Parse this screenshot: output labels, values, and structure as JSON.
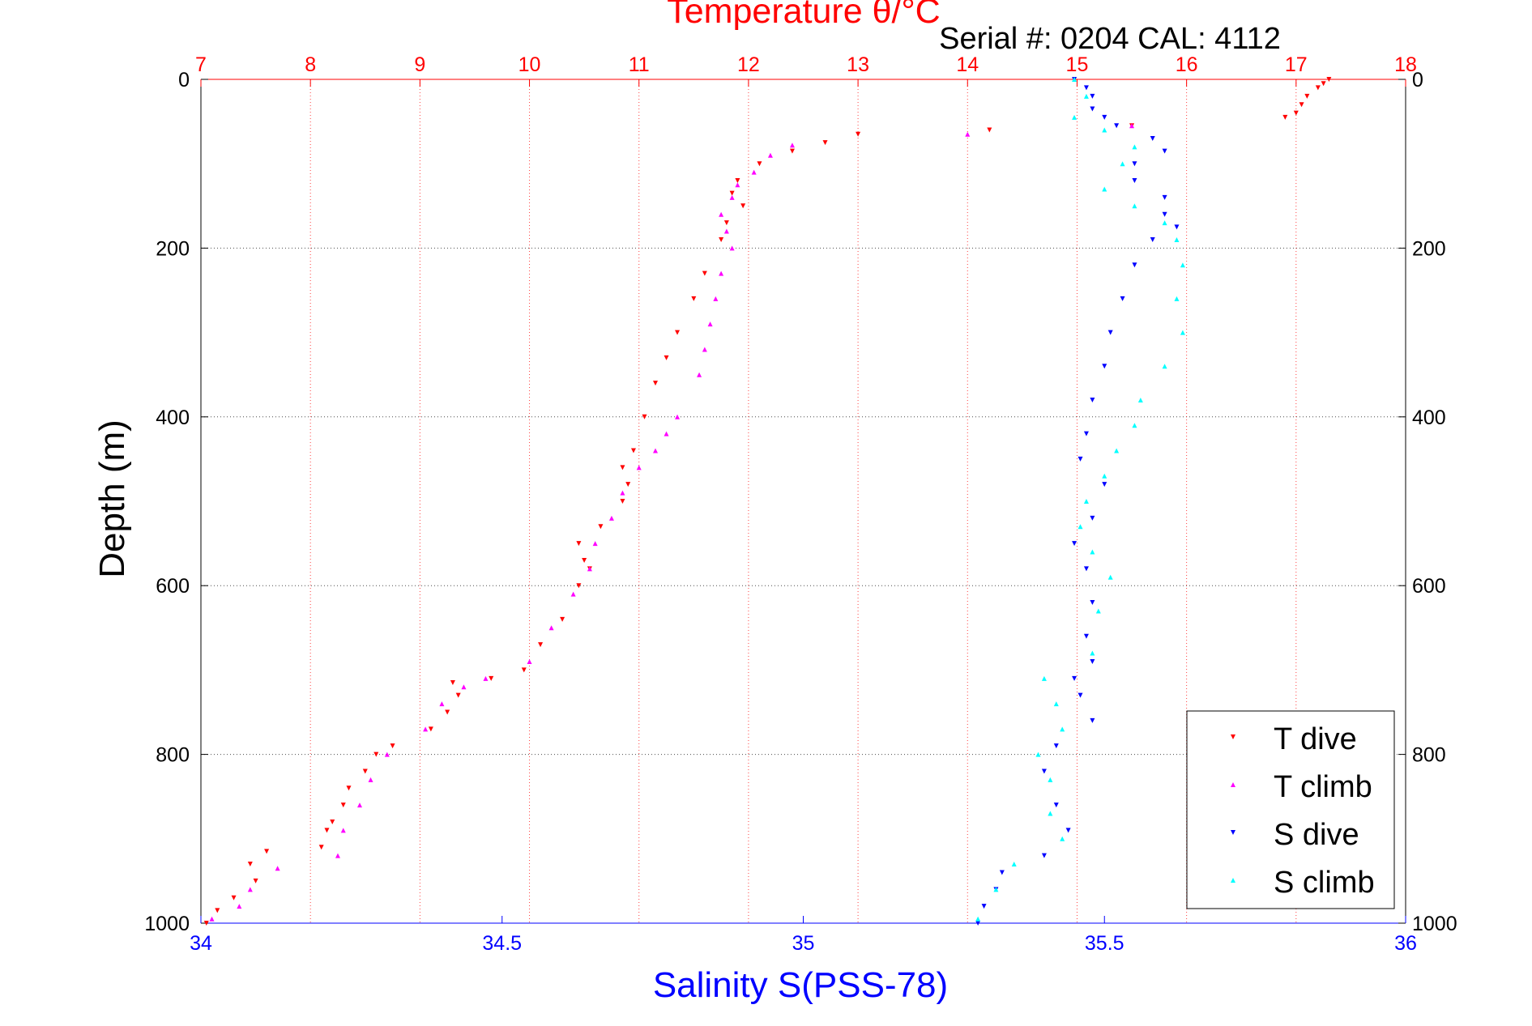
{
  "chart_data": {
    "type": "scatter",
    "title": "Temperature θ/°C",
    "subtitle": "Serial #: 0204  CAL: 4112",
    "ylabel": "Depth (m)",
    "xlabel": "Salinity S(PSS-78)",
    "ylim": [
      0,
      1000
    ],
    "y_reversed": true,
    "yticks": [
      "0",
      "200",
      "400",
      "600",
      "800",
      "1000"
    ],
    "x_bottom": {
      "label": "Salinity S(PSS-78)",
      "lim": [
        34,
        36
      ],
      "ticks": [
        "34",
        "34.5",
        "35",
        "35.5",
        "36"
      ],
      "color": "#0000ff"
    },
    "x_top": {
      "label": "Temperature θ/°C",
      "lim": [
        7,
        18
      ],
      "ticks": [
        "7",
        "8",
        "9",
        "10",
        "11",
        "12",
        "13",
        "14",
        "15",
        "16",
        "17",
        "18"
      ],
      "color": "#ff0000"
    },
    "grid": true,
    "legend_position": "bottom-right",
    "series": [
      {
        "name": "T dive",
        "axis": "top",
        "color": "#ff0000",
        "marker": "triangle-down",
        "points": [
          [
            17.3,
            0
          ],
          [
            17.25,
            5
          ],
          [
            17.2,
            10
          ],
          [
            17.1,
            20
          ],
          [
            17.05,
            30
          ],
          [
            17.0,
            40
          ],
          [
            16.9,
            45
          ],
          [
            15.5,
            55
          ],
          [
            14.2,
            60
          ],
          [
            13.0,
            65
          ],
          [
            12.7,
            75
          ],
          [
            12.4,
            85
          ],
          [
            12.1,
            100
          ],
          [
            11.9,
            120
          ],
          [
            11.85,
            135
          ],
          [
            11.95,
            150
          ],
          [
            11.8,
            170
          ],
          [
            11.75,
            190
          ],
          [
            11.6,
            230
          ],
          [
            11.5,
            260
          ],
          [
            11.35,
            300
          ],
          [
            11.25,
            330
          ],
          [
            11.15,
            360
          ],
          [
            11.05,
            400
          ],
          [
            10.95,
            440
          ],
          [
            10.85,
            460
          ],
          [
            10.9,
            480
          ],
          [
            10.85,
            500
          ],
          [
            10.65,
            530
          ],
          [
            10.45,
            550
          ],
          [
            10.5,
            570
          ],
          [
            10.55,
            580
          ],
          [
            10.45,
            600
          ],
          [
            10.3,
            640
          ],
          [
            10.1,
            670
          ],
          [
            9.95,
            700
          ],
          [
            9.65,
            710
          ],
          [
            9.3,
            715
          ],
          [
            9.35,
            730
          ],
          [
            9.25,
            750
          ],
          [
            9.1,
            770
          ],
          [
            8.75,
            790
          ],
          [
            8.6,
            800
          ],
          [
            8.5,
            820
          ],
          [
            8.35,
            840
          ],
          [
            8.3,
            860
          ],
          [
            8.2,
            880
          ],
          [
            8.15,
            890
          ],
          [
            8.1,
            910
          ],
          [
            7.6,
            915
          ],
          [
            7.45,
            930
          ],
          [
            7.5,
            950
          ],
          [
            7.3,
            970
          ],
          [
            7.15,
            985
          ],
          [
            7.05,
            1000
          ]
        ]
      },
      {
        "name": "T climb",
        "axis": "top",
        "color": "#ff00ff",
        "marker": "triangle-up",
        "points": [
          [
            15.5,
            55
          ],
          [
            14.0,
            65
          ],
          [
            12.4,
            78
          ],
          [
            12.2,
            90
          ],
          [
            12.05,
            110
          ],
          [
            11.9,
            125
          ],
          [
            11.85,
            140
          ],
          [
            11.75,
            160
          ],
          [
            11.8,
            180
          ],
          [
            11.85,
            200
          ],
          [
            11.75,
            230
          ],
          [
            11.7,
            260
          ],
          [
            11.65,
            290
          ],
          [
            11.6,
            320
          ],
          [
            11.55,
            350
          ],
          [
            11.35,
            400
          ],
          [
            11.25,
            420
          ],
          [
            11.15,
            440
          ],
          [
            11.0,
            460
          ],
          [
            10.85,
            490
          ],
          [
            10.75,
            520
          ],
          [
            10.6,
            550
          ],
          [
            10.55,
            580
          ],
          [
            10.4,
            610
          ],
          [
            10.2,
            650
          ],
          [
            10.0,
            690
          ],
          [
            9.6,
            710
          ],
          [
            9.4,
            720
          ],
          [
            9.2,
            740
          ],
          [
            9.05,
            770
          ],
          [
            8.7,
            800
          ],
          [
            8.55,
            830
          ],
          [
            8.45,
            860
          ],
          [
            8.3,
            890
          ],
          [
            8.25,
            920
          ],
          [
            7.7,
            935
          ],
          [
            7.45,
            960
          ],
          [
            7.35,
            980
          ],
          [
            7.1,
            995
          ]
        ]
      },
      {
        "name": "S dive",
        "axis": "bottom",
        "color": "#0000ff",
        "marker": "triangle-down",
        "points": [
          [
            35.45,
            0
          ],
          [
            35.47,
            10
          ],
          [
            35.48,
            20
          ],
          [
            35.48,
            35
          ],
          [
            35.5,
            45
          ],
          [
            35.52,
            55
          ],
          [
            35.58,
            70
          ],
          [
            35.6,
            85
          ],
          [
            35.55,
            100
          ],
          [
            35.55,
            120
          ],
          [
            35.6,
            140
          ],
          [
            35.6,
            160
          ],
          [
            35.62,
            175
          ],
          [
            35.58,
            190
          ],
          [
            35.55,
            220
          ],
          [
            35.53,
            260
          ],
          [
            35.51,
            300
          ],
          [
            35.5,
            340
          ],
          [
            35.48,
            380
          ],
          [
            35.47,
            420
          ],
          [
            35.46,
            450
          ],
          [
            35.5,
            480
          ],
          [
            35.48,
            520
          ],
          [
            35.45,
            550
          ],
          [
            35.47,
            580
          ],
          [
            35.48,
            620
          ],
          [
            35.47,
            660
          ],
          [
            35.48,
            690
          ],
          [
            35.45,
            710
          ],
          [
            35.46,
            730
          ],
          [
            35.48,
            760
          ],
          [
            35.42,
            790
          ],
          [
            35.4,
            820
          ],
          [
            35.42,
            860
          ],
          [
            35.44,
            890
          ],
          [
            35.4,
            920
          ],
          [
            35.33,
            940
          ],
          [
            35.32,
            960
          ],
          [
            35.3,
            980
          ],
          [
            35.29,
            1000
          ]
        ]
      },
      {
        "name": "S climb",
        "axis": "bottom",
        "color": "#00ffff",
        "marker": "triangle-up",
        "points": [
          [
            35.45,
            0
          ],
          [
            35.47,
            20
          ],
          [
            35.45,
            45
          ],
          [
            35.5,
            60
          ],
          [
            35.55,
            80
          ],
          [
            35.53,
            100
          ],
          [
            35.5,
            130
          ],
          [
            35.55,
            150
          ],
          [
            35.6,
            170
          ],
          [
            35.62,
            190
          ],
          [
            35.63,
            220
          ],
          [
            35.62,
            260
          ],
          [
            35.63,
            300
          ],
          [
            35.6,
            340
          ],
          [
            35.56,
            380
          ],
          [
            35.55,
            410
          ],
          [
            35.52,
            440
          ],
          [
            35.5,
            470
          ],
          [
            35.47,
            500
          ],
          [
            35.46,
            530
          ],
          [
            35.48,
            560
          ],
          [
            35.51,
            590
          ],
          [
            35.49,
            630
          ],
          [
            35.48,
            680
          ],
          [
            35.4,
            710
          ],
          [
            35.42,
            740
          ],
          [
            35.43,
            770
          ],
          [
            35.39,
            800
          ],
          [
            35.41,
            830
          ],
          [
            35.41,
            870
          ],
          [
            35.43,
            900
          ],
          [
            35.35,
            930
          ],
          [
            35.32,
            960
          ],
          [
            35.29,
            995
          ]
        ]
      }
    ]
  }
}
